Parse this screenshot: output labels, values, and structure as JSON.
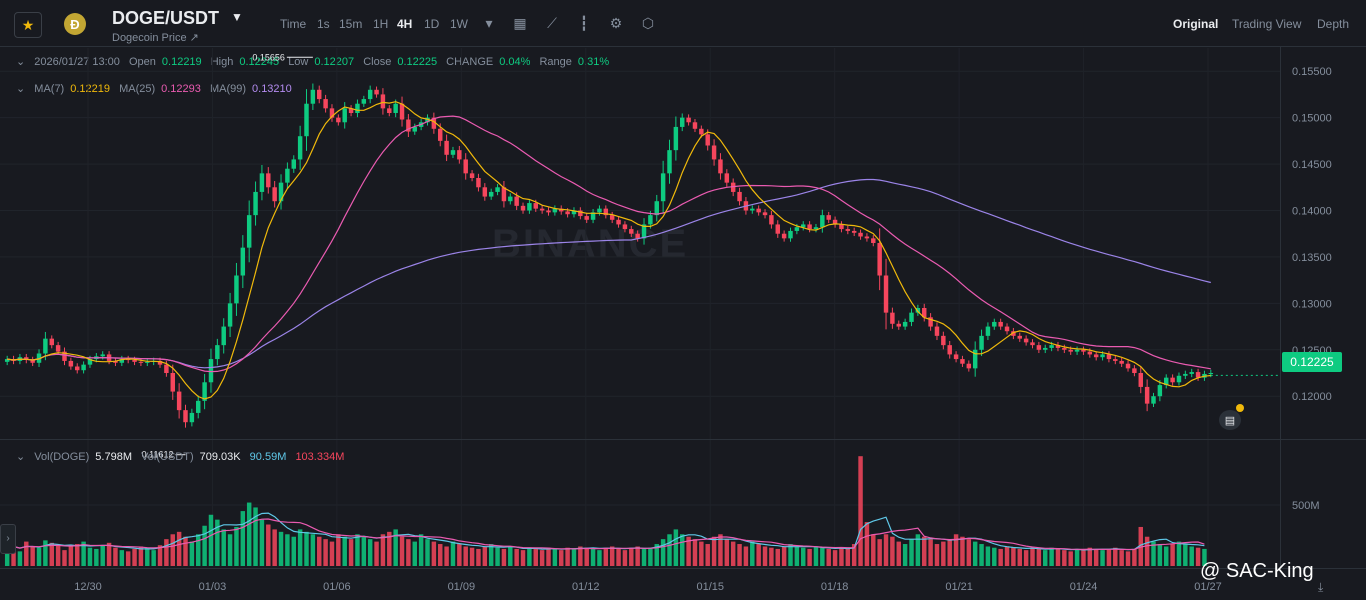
{
  "header": {
    "pair": "DOGE/USDT",
    "subtitle": "Dogecoin Price ↗",
    "coin_glyph": "Ð",
    "timeframes": [
      {
        "label": "Time",
        "active": false
      },
      {
        "label": "1s",
        "active": false
      },
      {
        "label": "15m",
        "active": false
      },
      {
        "label": "1H",
        "active": false
      },
      {
        "label": "4H",
        "active": true
      },
      {
        "label": "1D",
        "active": false
      },
      {
        "label": "1W",
        "active": false
      }
    ],
    "tools": [
      "chevron-down-icon",
      "calendar-icon",
      "line-chart-icon",
      "candles-icon",
      "indicator-settings-icon",
      "gear-icon"
    ],
    "views": [
      {
        "label": "Original",
        "active": true
      },
      {
        "label": "Trading View",
        "active": false
      },
      {
        "label": "Depth",
        "active": false
      }
    ]
  },
  "ohlc": {
    "datetime": "2026/01/27 13:00",
    "open_label": "Open",
    "open": "0.12219",
    "high_label": "High",
    "high": "0.12245",
    "low_label": "Low",
    "low": "0.12207",
    "close_label": "Close",
    "close": "0.12225",
    "change_label": "CHANGE",
    "change": "0.04%",
    "range_label": "Range",
    "range": "0.31%"
  },
  "ma": {
    "ma7_label": "MA(7)",
    "ma7": "0.12219",
    "ma25_label": "MA(25)",
    "ma25": "0.12293",
    "ma99_label": "MA(99)",
    "ma99": "0.13210"
  },
  "vol": {
    "doge_label": "Vol(DOGE)",
    "doge": "5.798M",
    "usdt_label": "Vol(USDT)",
    "usdt": "709.03K",
    "ma1": "90.59M",
    "ma2": "103.334M"
  },
  "current_price": "0.12225",
  "watermark_text": "@ SAC-King",
  "logo_text": "BINANCE",
  "colors": {
    "up": "#0ecb81",
    "down": "#f6465d",
    "ma7": "#f0b90b",
    "ma25": "#ea5bb1",
    "ma99": "#9b84e8",
    "vol_ma1": "#5fc8e8",
    "vol_ma2": "#ea5bb1"
  },
  "chart_data": {
    "type": "candlestick",
    "price_axis": {
      "ticks": [
        "0.15500",
        "0.15000",
        "0.14500",
        "0.14000",
        "0.13500",
        "0.13000",
        "0.12500",
        "0.12000"
      ],
      "range": [
        0.1155,
        0.1575
      ]
    },
    "volume_axis": {
      "ticks": [
        "500M"
      ],
      "range": [
        0,
        1000
      ]
    },
    "x_tick_labels": [
      "12/30",
      "01/03",
      "01/06",
      "01/09",
      "01/12",
      "01/15",
      "01/18",
      "01/21",
      "01/24",
      "01/27"
    ],
    "high_annotation": "0.15656",
    "low_annotation": "0.11612",
    "close_levels": [
      0.124,
      0.1238,
      0.1242,
      0.1239,
      0.1236,
      0.1246,
      0.1262,
      0.1255,
      0.1248,
      0.1238,
      0.1232,
      0.1228,
      0.1234,
      0.124,
      0.1243,
      0.1245,
      0.1238,
      0.1236,
      0.124,
      0.1239,
      0.1237,
      0.1236,
      0.1237,
      0.1238,
      0.1234,
      0.1225,
      0.1205,
      0.1185,
      0.1172,
      0.1182,
      0.1195,
      0.1215,
      0.124,
      0.1255,
      0.1275,
      0.13,
      0.133,
      0.136,
      0.1395,
      0.142,
      0.144,
      0.1425,
      0.141,
      0.143,
      0.1445,
      0.1455,
      0.148,
      0.1515,
      0.153,
      0.152,
      0.151,
      0.15,
      0.1495,
      0.151,
      0.1505,
      0.1515,
      0.152,
      0.153,
      0.1525,
      0.151,
      0.1505,
      0.1515,
      0.1498,
      0.1485,
      0.149,
      0.1495,
      0.15,
      0.1488,
      0.1475,
      0.146,
      0.1465,
      0.1455,
      0.144,
      0.1435,
      0.1425,
      0.1415,
      0.142,
      0.1425,
      0.141,
      0.1415,
      0.1405,
      0.14,
      0.1408,
      0.1402,
      0.14,
      0.1398,
      0.1402,
      0.1399,
      0.1396,
      0.14,
      0.1394,
      0.139,
      0.1398,
      0.1402,
      0.1395,
      0.139,
      0.1385,
      0.138,
      0.1375,
      0.137,
      0.1385,
      0.1395,
      0.141,
      0.144,
      0.1465,
      0.149,
      0.15,
      0.1495,
      0.1488,
      0.1482,
      0.147,
      0.1455,
      0.144,
      0.143,
      0.142,
      0.141,
      0.14,
      0.1402,
      0.1398,
      0.1395,
      0.1385,
      0.1375,
      0.137,
      0.1378,
      0.1382,
      0.1385,
      0.138,
      0.1382,
      0.1395,
      0.139,
      0.1385,
      0.138,
      0.1378,
      0.1376,
      0.1372,
      0.137,
      0.1365,
      0.133,
      0.129,
      0.1278,
      0.1275,
      0.128,
      0.129,
      0.1295,
      0.1285,
      0.1275,
      0.1265,
      0.1255,
      0.1245,
      0.124,
      0.1235,
      0.123,
      0.125,
      0.1265,
      0.1275,
      0.128,
      0.1275,
      0.127,
      0.1265,
      0.1262,
      0.1258,
      0.1255,
      0.125,
      0.1252,
      0.1255,
      0.1252,
      0.125,
      0.1248,
      0.125,
      0.1248,
      0.1245,
      0.1242,
      0.1245,
      0.124,
      0.1238,
      0.1235,
      0.123,
      0.1225,
      0.121,
      0.1192,
      0.12,
      0.1212,
      0.122,
      0.1215,
      0.1222,
      0.1224,
      0.1226,
      0.122,
      0.1224,
      0.1225
    ],
    "volume_levels": [
      180,
      140,
      120,
      200,
      160,
      150,
      210,
      190,
      170,
      130,
      160,
      180,
      200,
      150,
      140,
      170,
      190,
      150,
      130,
      120,
      140,
      160,
      150,
      130,
      170,
      220,
      260,
      280,
      240,
      200,
      260,
      330,
      420,
      380,
      300,
      260,
      320,
      450,
      520,
      480,
      380,
      340,
      300,
      280,
      260,
      240,
      300,
      280,
      260,
      240,
      220,
      200,
      260,
      240,
      220,
      260,
      240,
      220,
      200,
      260,
      280,
      300,
      240,
      220,
      200,
      260,
      220,
      200,
      180,
      160,
      200,
      180,
      160,
      150,
      140,
      160,
      180,
      150,
      140,
      160,
      140,
      130,
      150,
      140,
      130,
      150,
      140,
      130,
      150,
      140,
      160,
      150,
      140,
      130,
      150,
      160,
      140,
      130,
      150,
      160,
      140,
      150,
      180,
      220,
      260,
      300,
      260,
      240,
      220,
      200,
      180,
      240,
      260,
      220,
      200,
      180,
      160,
      200,
      180,
      160,
      150,
      140,
      160,
      180,
      160,
      150,
      140,
      160,
      150,
      140,
      130,
      150,
      140,
      180,
      900,
      360,
      260,
      220,
      260,
      240,
      200,
      180,
      220,
      260,
      240,
      220,
      180,
      200,
      220,
      260,
      240,
      220,
      200,
      180,
      160,
      150,
      140,
      160,
      150,
      140,
      130,
      150,
      140,
      130,
      150,
      140,
      130,
      120,
      140,
      130,
      150,
      140,
      130,
      140,
      150,
      130,
      120,
      140,
      320,
      240,
      200,
      180,
      160,
      180,
      200,
      180,
      160,
      150,
      140
    ]
  }
}
